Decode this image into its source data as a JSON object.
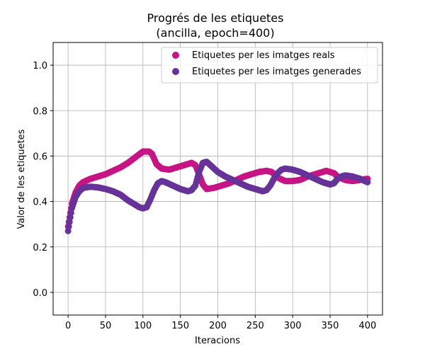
{
  "chart_data": {
    "type": "scatter",
    "title": "Progrés de les etiquetes",
    "subtitle": "(ancilla, epoch=400)",
    "xlabel": "Iteracions",
    "ylabel": "Valor de les etiquetes",
    "xlim": [
      -20,
      420
    ],
    "ylim": [
      -0.1,
      1.1
    ],
    "xticks": [
      "0",
      "50",
      "100",
      "150",
      "200",
      "250",
      "300",
      "350",
      "400"
    ],
    "yticks": [
      "0.0",
      "0.2",
      "0.4",
      "0.6",
      "0.8",
      "1.0"
    ],
    "grid": true,
    "legend_position": "top-right",
    "series": [
      {
        "name": "Etiquetes per les imatges reals",
        "color": "#c71585",
        "keypoints": [
          [
            0,
            0.29
          ],
          [
            5,
            0.39
          ],
          [
            10,
            0.44
          ],
          [
            15,
            0.47
          ],
          [
            20,
            0.485
          ],
          [
            30,
            0.5
          ],
          [
            40,
            0.51
          ],
          [
            50,
            0.52
          ],
          [
            60,
            0.535
          ],
          [
            70,
            0.55
          ],
          [
            80,
            0.57
          ],
          [
            90,
            0.595
          ],
          [
            100,
            0.62
          ],
          [
            108,
            0.62
          ],
          [
            112,
            0.61
          ],
          [
            118,
            0.565
          ],
          [
            125,
            0.545
          ],
          [
            135,
            0.54
          ],
          [
            150,
            0.555
          ],
          [
            160,
            0.565
          ],
          [
            165,
            0.57
          ],
          [
            170,
            0.56
          ],
          [
            175,
            0.52
          ],
          [
            180,
            0.475
          ],
          [
            185,
            0.455
          ],
          [
            195,
            0.46
          ],
          [
            205,
            0.47
          ],
          [
            215,
            0.48
          ],
          [
            225,
            0.495
          ],
          [
            235,
            0.51
          ],
          [
            245,
            0.52
          ],
          [
            255,
            0.53
          ],
          [
            265,
            0.535
          ],
          [
            272,
            0.53
          ],
          [
            280,
            0.505
          ],
          [
            290,
            0.49
          ],
          [
            300,
            0.49
          ],
          [
            310,
            0.495
          ],
          [
            320,
            0.51
          ],
          [
            330,
            0.52
          ],
          [
            340,
            0.53
          ],
          [
            345,
            0.535
          ],
          [
            350,
            0.53
          ],
          [
            355,
            0.525
          ],
          [
            360,
            0.51
          ],
          [
            370,
            0.495
          ],
          [
            380,
            0.49
          ],
          [
            390,
            0.495
          ],
          [
            400,
            0.5
          ]
        ]
      },
      {
        "name": "Etiquetes per les imatges generades",
        "color": "#663399",
        "keypoints": [
          [
            0,
            0.27
          ],
          [
            5,
            0.37
          ],
          [
            10,
            0.42
          ],
          [
            15,
            0.445
          ],
          [
            20,
            0.46
          ],
          [
            30,
            0.465
          ],
          [
            40,
            0.462
          ],
          [
            50,
            0.455
          ],
          [
            60,
            0.445
          ],
          [
            70,
            0.43
          ],
          [
            80,
            0.405
          ],
          [
            90,
            0.385
          ],
          [
            95,
            0.375
          ],
          [
            100,
            0.37
          ],
          [
            105,
            0.375
          ],
          [
            110,
            0.41
          ],
          [
            115,
            0.45
          ],
          [
            120,
            0.48
          ],
          [
            125,
            0.49
          ],
          [
            130,
            0.485
          ],
          [
            140,
            0.47
          ],
          [
            150,
            0.455
          ],
          [
            160,
            0.445
          ],
          [
            165,
            0.45
          ],
          [
            170,
            0.47
          ],
          [
            175,
            0.53
          ],
          [
            180,
            0.57
          ],
          [
            185,
            0.575
          ],
          [
            190,
            0.56
          ],
          [
            200,
            0.53
          ],
          [
            210,
            0.51
          ],
          [
            220,
            0.495
          ],
          [
            230,
            0.48
          ],
          [
            240,
            0.465
          ],
          [
            250,
            0.455
          ],
          [
            260,
            0.445
          ],
          [
            265,
            0.45
          ],
          [
            270,
            0.47
          ],
          [
            275,
            0.5
          ],
          [
            280,
            0.525
          ],
          [
            285,
            0.54
          ],
          [
            290,
            0.545
          ],
          [
            300,
            0.54
          ],
          [
            310,
            0.53
          ],
          [
            320,
            0.515
          ],
          [
            330,
            0.5
          ],
          [
            340,
            0.485
          ],
          [
            350,
            0.475
          ],
          [
            355,
            0.48
          ],
          [
            360,
            0.5
          ],
          [
            365,
            0.51
          ],
          [
            370,
            0.515
          ],
          [
            380,
            0.51
          ],
          [
            390,
            0.5
          ],
          [
            400,
            0.485
          ]
        ]
      }
    ]
  }
}
